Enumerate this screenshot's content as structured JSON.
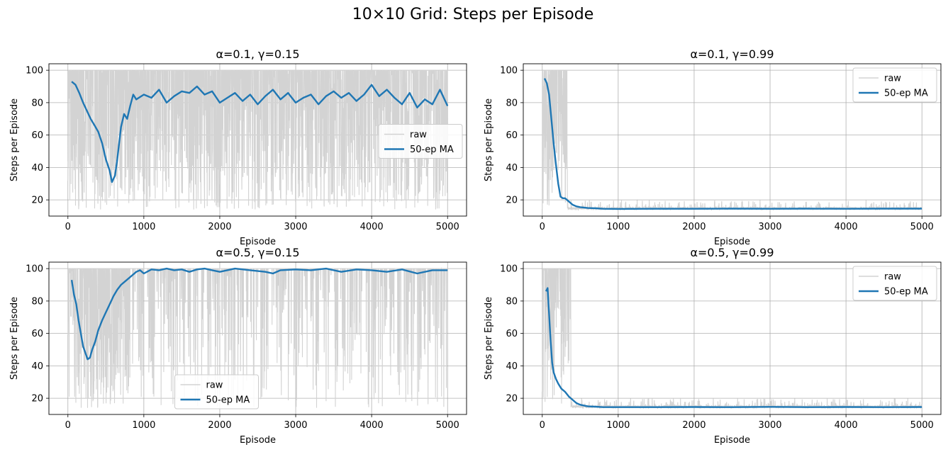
{
  "figure": {
    "title": "10×10 Grid: Steps per Episode"
  },
  "chart_data": [
    {
      "type": "line",
      "title": "α=0.1, γ=0.15",
      "xlabel": "Episode",
      "ylabel": "Steps per Episode",
      "xlim": [
        -250,
        5250
      ],
      "ylim": [
        10,
        104
      ],
      "xticks": [
        0,
        1000,
        2000,
        3000,
        4000,
        5000
      ],
      "yticks": [
        20,
        40,
        60,
        80,
        100
      ],
      "grid": true,
      "legend": {
        "position": "center-right",
        "entries": [
          "raw",
          "50-ep MA"
        ]
      },
      "raw_band": {
        "color": "#d3d3d3",
        "episodes": [
          0,
          5000
        ],
        "min_steps": 14,
        "max_steps": 100
      },
      "series": [
        {
          "name": "50-ep MA",
          "color": "#1f77b4",
          "x": [
            50,
            100,
            150,
            200,
            250,
            300,
            350,
            400,
            450,
            500,
            550,
            580,
            620,
            650,
            700,
            740,
            780,
            820,
            860,
            900,
            1000,
            1100,
            1200,
            1300,
            1400,
            1500,
            1600,
            1700,
            1800,
            1900,
            2000,
            2100,
            2200,
            2300,
            2400,
            2500,
            2600,
            2700,
            2800,
            2900,
            3000,
            3100,
            3200,
            3300,
            3400,
            3500,
            3600,
            3700,
            3800,
            3900,
            4000,
            4100,
            4200,
            4300,
            4400,
            4500,
            4600,
            4700,
            4800,
            4900,
            5000
          ],
          "y": [
            93,
            91,
            86,
            80,
            75,
            70,
            66,
            62,
            55,
            45,
            38,
            31,
            35,
            45,
            65,
            73,
            70,
            78,
            85,
            82,
            85,
            83,
            88,
            80,
            84,
            87,
            86,
            90,
            85,
            87,
            80,
            83,
            86,
            81,
            85,
            79,
            84,
            88,
            82,
            86,
            80,
            83,
            85,
            79,
            84,
            87,
            83,
            86,
            81,
            85,
            91,
            84,
            88,
            83,
            79,
            86,
            77,
            82,
            79,
            88,
            78
          ]
        }
      ]
    },
    {
      "type": "line",
      "title": "α=0.1, γ=0.99",
      "xlabel": "Episode",
      "ylabel": "Steps per Episode",
      "xlim": [
        -250,
        5250
      ],
      "ylim": [
        10,
        104
      ],
      "xticks": [
        0,
        1000,
        2000,
        3000,
        4000,
        5000
      ],
      "yticks": [
        20,
        40,
        60,
        80,
        100
      ],
      "grid": true,
      "legend": {
        "position": "top-right",
        "entries": [
          "raw",
          "50-ep MA"
        ]
      },
      "raw_band": {
        "color": "#d3d3d3",
        "episodes": [
          0,
          5000
        ],
        "min_steps": 14,
        "max_steps": 100
      },
      "series": [
        {
          "name": "50-ep MA",
          "color": "#1f77b4",
          "x": [
            30,
            60,
            90,
            120,
            150,
            180,
            210,
            240,
            270,
            300,
            350,
            400,
            450,
            500,
            600,
            700,
            800,
            1000,
            1500,
            2000,
            2500,
            3000,
            3500,
            4000,
            4500,
            5000
          ],
          "y": [
            95,
            92,
            85,
            70,
            55,
            42,
            30,
            22,
            21,
            21,
            19,
            17,
            16,
            15.5,
            15,
            14.8,
            14.5,
            14.4,
            14.5,
            14.5,
            14.6,
            14.5,
            14.6,
            14.5,
            14.6,
            14.6
          ]
        }
      ]
    },
    {
      "type": "line",
      "title": "α=0.5, γ=0.15",
      "xlabel": "Episode",
      "ylabel": "Steps per Episode",
      "xlim": [
        -250,
        5250
      ],
      "ylim": [
        10,
        104
      ],
      "xticks": [
        0,
        1000,
        2000,
        3000,
        4000,
        5000
      ],
      "yticks": [
        20,
        40,
        60,
        80,
        100
      ],
      "grid": true,
      "legend": {
        "position": "bottom-center",
        "entries": [
          "raw",
          "50-ep MA"
        ]
      },
      "raw_band": {
        "color": "#d3d3d3",
        "episodes": [
          0,
          5000
        ],
        "min_steps": 14,
        "max_steps": 100
      },
      "series": [
        {
          "name": "50-ep MA",
          "color": "#1f77b4",
          "x": [
            50,
            80,
            110,
            140,
            170,
            200,
            230,
            260,
            290,
            320,
            360,
            400,
            450,
            500,
            550,
            600,
            650,
            700,
            750,
            800,
            850,
            900,
            950,
            1000,
            1100,
            1200,
            1300,
            1400,
            1500,
            1600,
            1700,
            1800,
            1900,
            2000,
            2200,
            2400,
            2600,
            2700,
            2800,
            3000,
            3200,
            3400,
            3600,
            3800,
            4000,
            4200,
            4400,
            4600,
            4800,
            5000
          ],
          "y": [
            93,
            84,
            78,
            68,
            60,
            52,
            48,
            44,
            45,
            50,
            55,
            62,
            68,
            73,
            78,
            83,
            87,
            90,
            92,
            94,
            96,
            98,
            99,
            97,
            99.5,
            99,
            100,
            99,
            99.5,
            98,
            99.5,
            100,
            99,
            98,
            100,
            99,
            98,
            97,
            99,
            99.5,
            99,
            100,
            98,
            99.5,
            99,
            98,
            99.5,
            97,
            99,
            99
          ]
        }
      ]
    },
    {
      "type": "line",
      "title": "α=0.5, γ=0.99",
      "xlabel": "Episode",
      "ylabel": "Steps per Episode",
      "xlim": [
        -250,
        5250
      ],
      "ylim": [
        10,
        104
      ],
      "xticks": [
        0,
        1000,
        2000,
        3000,
        4000,
        5000
      ],
      "yticks": [
        20,
        40,
        60,
        80,
        100
      ],
      "grid": true,
      "legend": {
        "position": "top-right",
        "entries": [
          "raw",
          "50-ep MA"
        ]
      },
      "raw_band": {
        "color": "#d3d3d3",
        "episodes": [
          0,
          5000
        ],
        "min_steps": 14,
        "max_steps": 100
      },
      "series": [
        {
          "name": "50-ep MA",
          "color": "#1f77b4",
          "x": [
            50,
            70,
            90,
            110,
            130,
            150,
            180,
            210,
            250,
            300,
            350,
            400,
            450,
            500,
            600,
            700,
            800,
            1000,
            1500,
            2000,
            2500,
            3000,
            3500,
            4000,
            4500,
            5000
          ],
          "y": [
            86,
            88,
            72,
            55,
            42,
            36,
            32,
            29,
            26,
            24,
            21,
            19,
            17,
            16,
            15,
            14.8,
            14.5,
            14.5,
            14.5,
            14.6,
            14.5,
            14.7,
            14.5,
            14.6,
            14.5,
            14.6
          ]
        }
      ]
    }
  ]
}
